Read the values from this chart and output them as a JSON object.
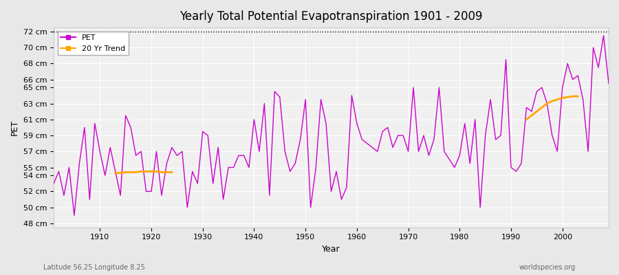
{
  "title": "Yearly Total Potential Evapotranspiration 1901 - 2009",
  "xlabel": "Year",
  "ylabel": "PET",
  "lat_lon_label": "Latitude 56.25 Longitude 8.25",
  "watermark": "worldspecies.org",
  "pet_color": "#cc00cc",
  "trend_color": "#ffa500",
  "background_color": "#e8e8e8",
  "plot_bg_color": "#f0f0f0",
  "ylim": [
    47.5,
    72.5
  ],
  "yticks": [
    48,
    50,
    52,
    54,
    55,
    57,
    59,
    61,
    63,
    65,
    66,
    68,
    70,
    72
  ],
  "ytick_labels": [
    "48 cm",
    "50 cm",
    "52 cm",
    "54 cm",
    "55 cm",
    "57 cm",
    "59 cm",
    "61 cm",
    "63 cm",
    "65 cm",
    "66 cm",
    "68 cm",
    "70 cm",
    "72 cm"
  ],
  "years": [
    1901,
    1902,
    1903,
    1904,
    1905,
    1906,
    1907,
    1908,
    1909,
    1910,
    1911,
    1912,
    1913,
    1914,
    1915,
    1916,
    1917,
    1918,
    1919,
    1920,
    1921,
    1922,
    1923,
    1924,
    1925,
    1926,
    1927,
    1928,
    1929,
    1930,
    1931,
    1932,
    1933,
    1934,
    1935,
    1936,
    1937,
    1938,
    1939,
    1940,
    1941,
    1942,
    1943,
    1944,
    1945,
    1946,
    1947,
    1948,
    1949,
    1950,
    1951,
    1952,
    1953,
    1954,
    1955,
    1956,
    1957,
    1958,
    1959,
    1960,
    1961,
    1962,
    1963,
    1964,
    1965,
    1966,
    1967,
    1968,
    1969,
    1970,
    1971,
    1972,
    1973,
    1974,
    1975,
    1976,
    1977,
    1978,
    1979,
    1980,
    1981,
    1982,
    1983,
    1984,
    1985,
    1986,
    1987,
    1988,
    1989,
    1990,
    1991,
    1992,
    1993,
    1994,
    1995,
    1996,
    1997,
    1998,
    1999,
    2000,
    2001,
    2002,
    2003,
    2004,
    2005,
    2006,
    2007,
    2008,
    2009
  ],
  "pet_values": [
    53.0,
    54.5,
    51.5,
    55.0,
    49.0,
    55.5,
    60.0,
    51.0,
    60.5,
    57.0,
    54.0,
    57.5,
    54.5,
    51.5,
    61.5,
    60.0,
    56.5,
    57.0,
    52.0,
    52.0,
    57.0,
    51.5,
    55.5,
    57.5,
    56.5,
    57.0,
    50.0,
    54.5,
    53.0,
    59.5,
    59.0,
    53.0,
    57.5,
    51.0,
    55.0,
    55.0,
    56.5,
    56.5,
    55.0,
    61.0,
    57.0,
    63.0,
    51.5,
    64.5,
    63.8,
    57.0,
    54.5,
    55.5,
    58.5,
    63.5,
    50.0,
    54.8,
    63.5,
    60.5,
    52.0,
    54.5,
    51.0,
    52.5,
    64.0,
    60.5,
    58.5,
    58.0,
    57.5,
    57.0,
    59.5,
    60.0,
    57.5,
    59.0,
    59.0,
    57.0,
    65.0,
    57.0,
    59.0,
    56.5,
    58.5,
    65.0,
    57.0,
    56.0,
    55.0,
    56.5,
    60.5,
    55.5,
    61.0,
    50.0,
    59.0,
    63.5,
    58.5,
    59.0,
    68.5,
    55.0,
    54.5,
    55.5,
    62.5,
    62.0,
    64.5,
    65.0,
    63.0,
    59.0,
    57.0,
    65.0,
    68.0,
    66.0,
    66.5,
    63.5,
    57.0,
    70.0,
    67.5,
    71.5,
    65.5
  ],
  "trend_years": [
    1913,
    1914,
    1915,
    1916,
    1917,
    1918,
    1919,
    1920,
    1921,
    1922,
    1923,
    1924,
    1993,
    1994,
    1995,
    1996,
    1997,
    1998,
    1999,
    2000,
    2001,
    2002,
    2003
  ],
  "trend_values": [
    54.3,
    54.3,
    54.4,
    54.4,
    54.4,
    54.5,
    54.5,
    54.5,
    54.5,
    54.4,
    54.4,
    54.4,
    61.0,
    61.5,
    62.0,
    62.5,
    63.0,
    63.3,
    63.5,
    63.7,
    63.8,
    63.9,
    63.9
  ]
}
